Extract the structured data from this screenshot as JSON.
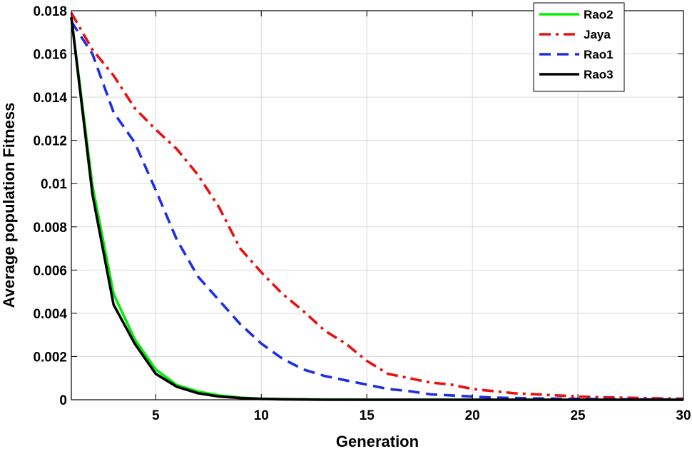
{
  "chart_data": {
    "type": "line",
    "title": "",
    "xlabel": "Generation",
    "ylabel": "Average population Fitness",
    "xlim": [
      1,
      30
    ],
    "ylim": [
      0,
      0.018
    ],
    "xticks": [
      5,
      10,
      15,
      20,
      25,
      30
    ],
    "yticks": [
      0,
      0.002,
      0.004,
      0.006,
      0.008,
      0.01,
      0.012,
      0.014,
      0.016,
      0.018
    ],
    "ytick_labels": [
      "0",
      "0.002",
      "0.004",
      "0.006",
      "0.008",
      "0.01",
      "0.012",
      "0.014",
      "0.016",
      "0.018"
    ],
    "grid": true,
    "legend_position": "top-right",
    "x": [
      1,
      2,
      3,
      4,
      5,
      6,
      7,
      8,
      9,
      10,
      11,
      12,
      13,
      14,
      15,
      16,
      17,
      18,
      19,
      20,
      21,
      22,
      23,
      24,
      25,
      26,
      27,
      28,
      29,
      30
    ],
    "series": [
      {
        "name": "Rao2",
        "color": "#00ee00",
        "style": "solid",
        "values": [
          0.0177,
          0.0099,
          0.0049,
          0.0028,
          0.0014,
          0.00068,
          0.00038,
          0.0002,
          0.0001,
          5e-05,
          3e-05,
          2e-05,
          1e-05,
          1e-05,
          0,
          0,
          0,
          0,
          0,
          0,
          0,
          0,
          0,
          0,
          0,
          0,
          0,
          0,
          0,
          0
        ]
      },
      {
        "name": "Jaya",
        "color": "#e8110e",
        "style": "dashdot",
        "values": [
          0.0179,
          0.0162,
          0.015,
          0.0135,
          0.0125,
          0.0116,
          0.0104,
          0.0089,
          0.007,
          0.0059,
          0.0049,
          0.0041,
          0.0032,
          0.0026,
          0.0018,
          0.0012,
          0.001,
          0.0008,
          0.0007,
          0.0005,
          0.0004,
          0.0003,
          0.00025,
          0.0002,
          0.00015,
          0.00012,
          0.0001,
          8e-05,
          6e-05,
          5e-05
        ]
      },
      {
        "name": "Rao1",
        "color": "#1c2ee6",
        "style": "dashed",
        "values": [
          0.0175,
          0.016,
          0.0133,
          0.0119,
          0.0097,
          0.0074,
          0.0057,
          0.0046,
          0.0035,
          0.0026,
          0.0019,
          0.0014,
          0.0011,
          0.0009,
          0.0007,
          0.0005,
          0.0004,
          0.00025,
          0.0002,
          0.00015,
          0.0001,
          8e-05,
          6e-05,
          5e-05,
          4e-05,
          3e-05,
          2e-05,
          2e-05,
          1e-05,
          1e-05
        ]
      },
      {
        "name": "Rao3",
        "color": "#000000",
        "style": "solid",
        "values": [
          0.0177,
          0.0095,
          0.0044,
          0.0026,
          0.0012,
          0.0006,
          0.0003,
          0.00015,
          8e-05,
          4e-05,
          2e-05,
          1e-05,
          0,
          0,
          0,
          0,
          0,
          0,
          0,
          0,
          0,
          0,
          0,
          0,
          0,
          0,
          0,
          0,
          0,
          0
        ]
      }
    ]
  }
}
